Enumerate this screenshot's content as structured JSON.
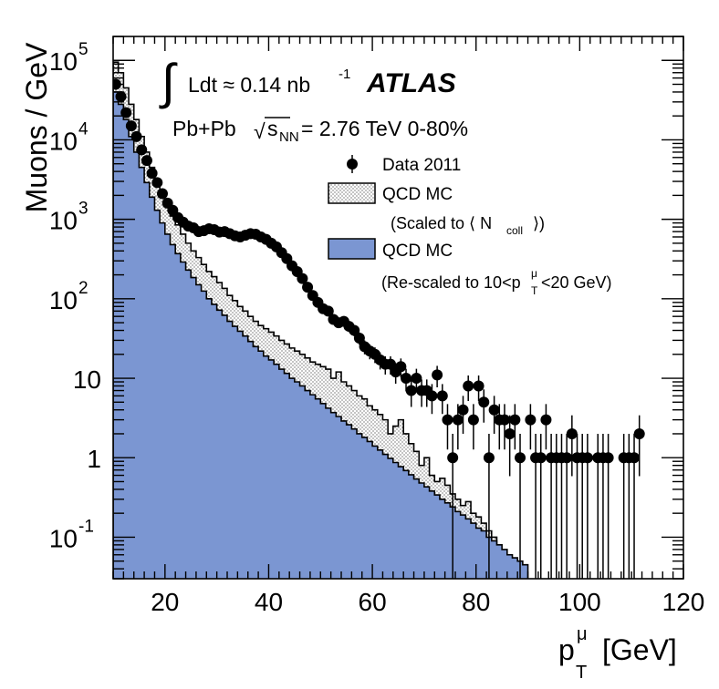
{
  "chart_data": {
    "type": "histogram",
    "xlabel": "p_T^μ [GeV]",
    "xlabel_main": "p",
    "xlabel_sup": "μ",
    "xlabel_sub": "T",
    "xlabel_unit": "[GeV]",
    "ylabel": "Muons / GeV",
    "xlim": [
      10,
      120
    ],
    "ylim": [
      0.03,
      200000
    ],
    "yscale": "log",
    "x_ticks": [
      20,
      40,
      60,
      80,
      100,
      120
    ],
    "y_ticks": [
      {
        "value": 100000,
        "base": "10",
        "exp": "5"
      },
      {
        "value": 10000,
        "base": "10",
        "exp": "4"
      },
      {
        "value": 1000,
        "base": "10",
        "exp": "3"
      },
      {
        "value": 100,
        "base": "10",
        "exp": "2"
      },
      {
        "value": 10,
        "base": "10",
        "exp": ""
      },
      {
        "value": 1,
        "base": "1",
        "exp": ""
      },
      {
        "value": 0.1,
        "base": "10",
        "exp": "-1"
      }
    ],
    "bin_width": 1,
    "annotations": {
      "lumi_integral": "∫",
      "lumi_text": "Ldt ≈ 0.14 nb",
      "lumi_exp": "-1",
      "experiment": "ATLAS",
      "system_a": "Pb+Pb",
      "sqrt_symbol": "√",
      "system_s": "s",
      "system_nn": "NN",
      "system_b": "= 2.76 TeV  0-80%"
    },
    "series": [
      {
        "name": "QCD MC",
        "note_a": "(Scaled to ⟨ N",
        "note_sub": "coll",
        "note_b": "⟩)",
        "style": "dotted-white",
        "bin_lo": 10,
        "values": [
          95000,
          70000,
          45000,
          28000,
          18000,
          11000,
          7000,
          4500,
          3000,
          2200,
          1500,
          1100,
          850,
          650,
          500,
          400,
          330,
          270,
          220,
          190,
          160,
          135,
          110,
          95,
          80,
          70,
          60,
          52,
          46,
          42,
          38,
          34,
          30,
          27,
          24,
          22,
          20,
          18,
          16,
          15,
          14,
          13,
          10,
          12,
          9,
          8,
          7,
          6,
          5.5,
          4.5,
          4,
          3.5,
          3,
          2,
          2.5,
          3,
          2,
          1.5,
          1.2,
          0.8,
          1.0,
          0.6,
          0.5,
          0.55,
          0.45,
          0.35,
          0.3,
          0.25,
          0.28,
          0.2,
          0.18,
          0.15,
          0.12,
          0.1,
          0.07,
          0.06,
          0.05,
          0.04
        ]
      },
      {
        "name": "QCD MC",
        "note_a": "(Re-scaled to 10<p",
        "note_sup": "μ",
        "note_sub": "T",
        "note_b": "<20 GeV)",
        "color": "#7b96d2",
        "bin_lo": 10,
        "values": [
          40000,
          28000,
          18000,
          11000,
          7000,
          4500,
          2900,
          1900,
          1300,
          900,
          650,
          480,
          370,
          290,
          230,
          185,
          150,
          125,
          100,
          85,
          72,
          62,
          52,
          45,
          39,
          34,
          29,
          25,
          22,
          19,
          17,
          15,
          13,
          11.5,
          10,
          9,
          8,
          7,
          6.2,
          5.5,
          4.8,
          4.2,
          3.7,
          3.3,
          2.9,
          2.6,
          2.3,
          2.0,
          1.8,
          1.6,
          1.4,
          1.25,
          1.1,
          0.98,
          0.87,
          0.77,
          0.69,
          0.61,
          0.54,
          0.48,
          0.43,
          0.38,
          0.34,
          0.3,
          0.27,
          0.24,
          0.21,
          0.19,
          0.17,
          0.15,
          0.13,
          0.12,
          0.1,
          0.09,
          0.08,
          0.07,
          0.06,
          0.055,
          0.05,
          0.045
        ]
      },
      {
        "name": "Data 2011",
        "style": "black-points",
        "points": [
          [
            10.5,
            50000
          ],
          [
            11.5,
            35000
          ],
          [
            12.5,
            22000
          ],
          [
            13.5,
            15000
          ],
          [
            14.5,
            11000
          ],
          [
            15.5,
            7500
          ],
          [
            16.5,
            5500
          ],
          [
            17.5,
            3800
          ],
          [
            18.5,
            2900
          ],
          [
            19.5,
            2100
          ],
          [
            20.5,
            1600
          ],
          [
            21.5,
            1300
          ],
          [
            22.5,
            1050
          ],
          [
            23.5,
            920
          ],
          [
            24.5,
            820
          ],
          [
            25.5,
            780
          ],
          [
            26.5,
            700
          ],
          [
            27.5,
            720
          ],
          [
            28.5,
            760
          ],
          [
            29.5,
            740
          ],
          [
            30.5,
            690
          ],
          [
            31.5,
            700
          ],
          [
            32.5,
            660
          ],
          [
            33.5,
            620
          ],
          [
            34.5,
            600
          ],
          [
            35.5,
            630
          ],
          [
            36.5,
            660
          ],
          [
            37.5,
            650
          ],
          [
            38.5,
            600
          ],
          [
            39.5,
            560
          ],
          [
            40.5,
            500
          ],
          [
            41.5,
            450
          ],
          [
            42.5,
            380
          ],
          [
            43.5,
            320
          ],
          [
            44.5,
            260
          ],
          [
            45.5,
            220
          ],
          [
            46.5,
            180
          ],
          [
            47.5,
            140
          ],
          [
            48.5,
            110
          ],
          [
            49.5,
            90
          ],
          [
            50.5,
            75
          ],
          [
            51.5,
            70
          ],
          [
            52.5,
            55
          ],
          [
            53.5,
            50
          ],
          [
            54.5,
            52
          ],
          [
            55.5,
            45
          ],
          [
            56.5,
            40
          ],
          [
            57.5,
            32
          ],
          [
            58.5,
            25
          ],
          [
            59.5,
            22
          ],
          [
            60.5,
            20
          ],
          [
            61.5,
            17
          ],
          [
            62.5,
            15
          ],
          [
            63.5,
            15
          ],
          [
            64.5,
            12
          ],
          [
            65.5,
            14
          ],
          [
            66.5,
            10
          ],
          [
            67.5,
            7
          ],
          [
            68.5,
            10
          ],
          [
            69.5,
            7
          ],
          [
            70.5,
            7
          ],
          [
            71.5,
            6
          ],
          [
            72.5,
            11
          ],
          [
            73.5,
            6
          ],
          [
            74.5,
            3
          ],
          [
            75.5,
            1
          ],
          [
            76.5,
            3
          ],
          [
            77.5,
            4
          ],
          [
            78.5,
            8
          ],
          [
            79.5,
            3
          ],
          [
            80.5,
            8
          ],
          [
            81.5,
            5
          ],
          [
            82.5,
            1
          ],
          [
            83.5,
            4
          ],
          [
            84.5,
            3
          ],
          [
            85.5,
            3
          ],
          [
            86.5,
            2
          ],
          [
            87.5,
            3
          ],
          [
            88.5,
            1
          ],
          [
            90.5,
            3
          ],
          [
            91.5,
            1
          ],
          [
            92.5,
            1
          ],
          [
            93.5,
            3
          ],
          [
            94.5,
            1
          ],
          [
            95.5,
            1
          ],
          [
            96.5,
            1
          ],
          [
            97.5,
            1
          ],
          [
            98.5,
            2
          ],
          [
            99.5,
            1
          ],
          [
            100.5,
            1
          ],
          [
            101.5,
            1
          ],
          [
            103.5,
            1
          ],
          [
            104.5,
            1
          ],
          [
            105.5,
            1
          ],
          [
            108.5,
            1
          ],
          [
            109.5,
            1
          ],
          [
            110.5,
            1
          ],
          [
            111.5,
            2
          ]
        ]
      }
    ]
  }
}
